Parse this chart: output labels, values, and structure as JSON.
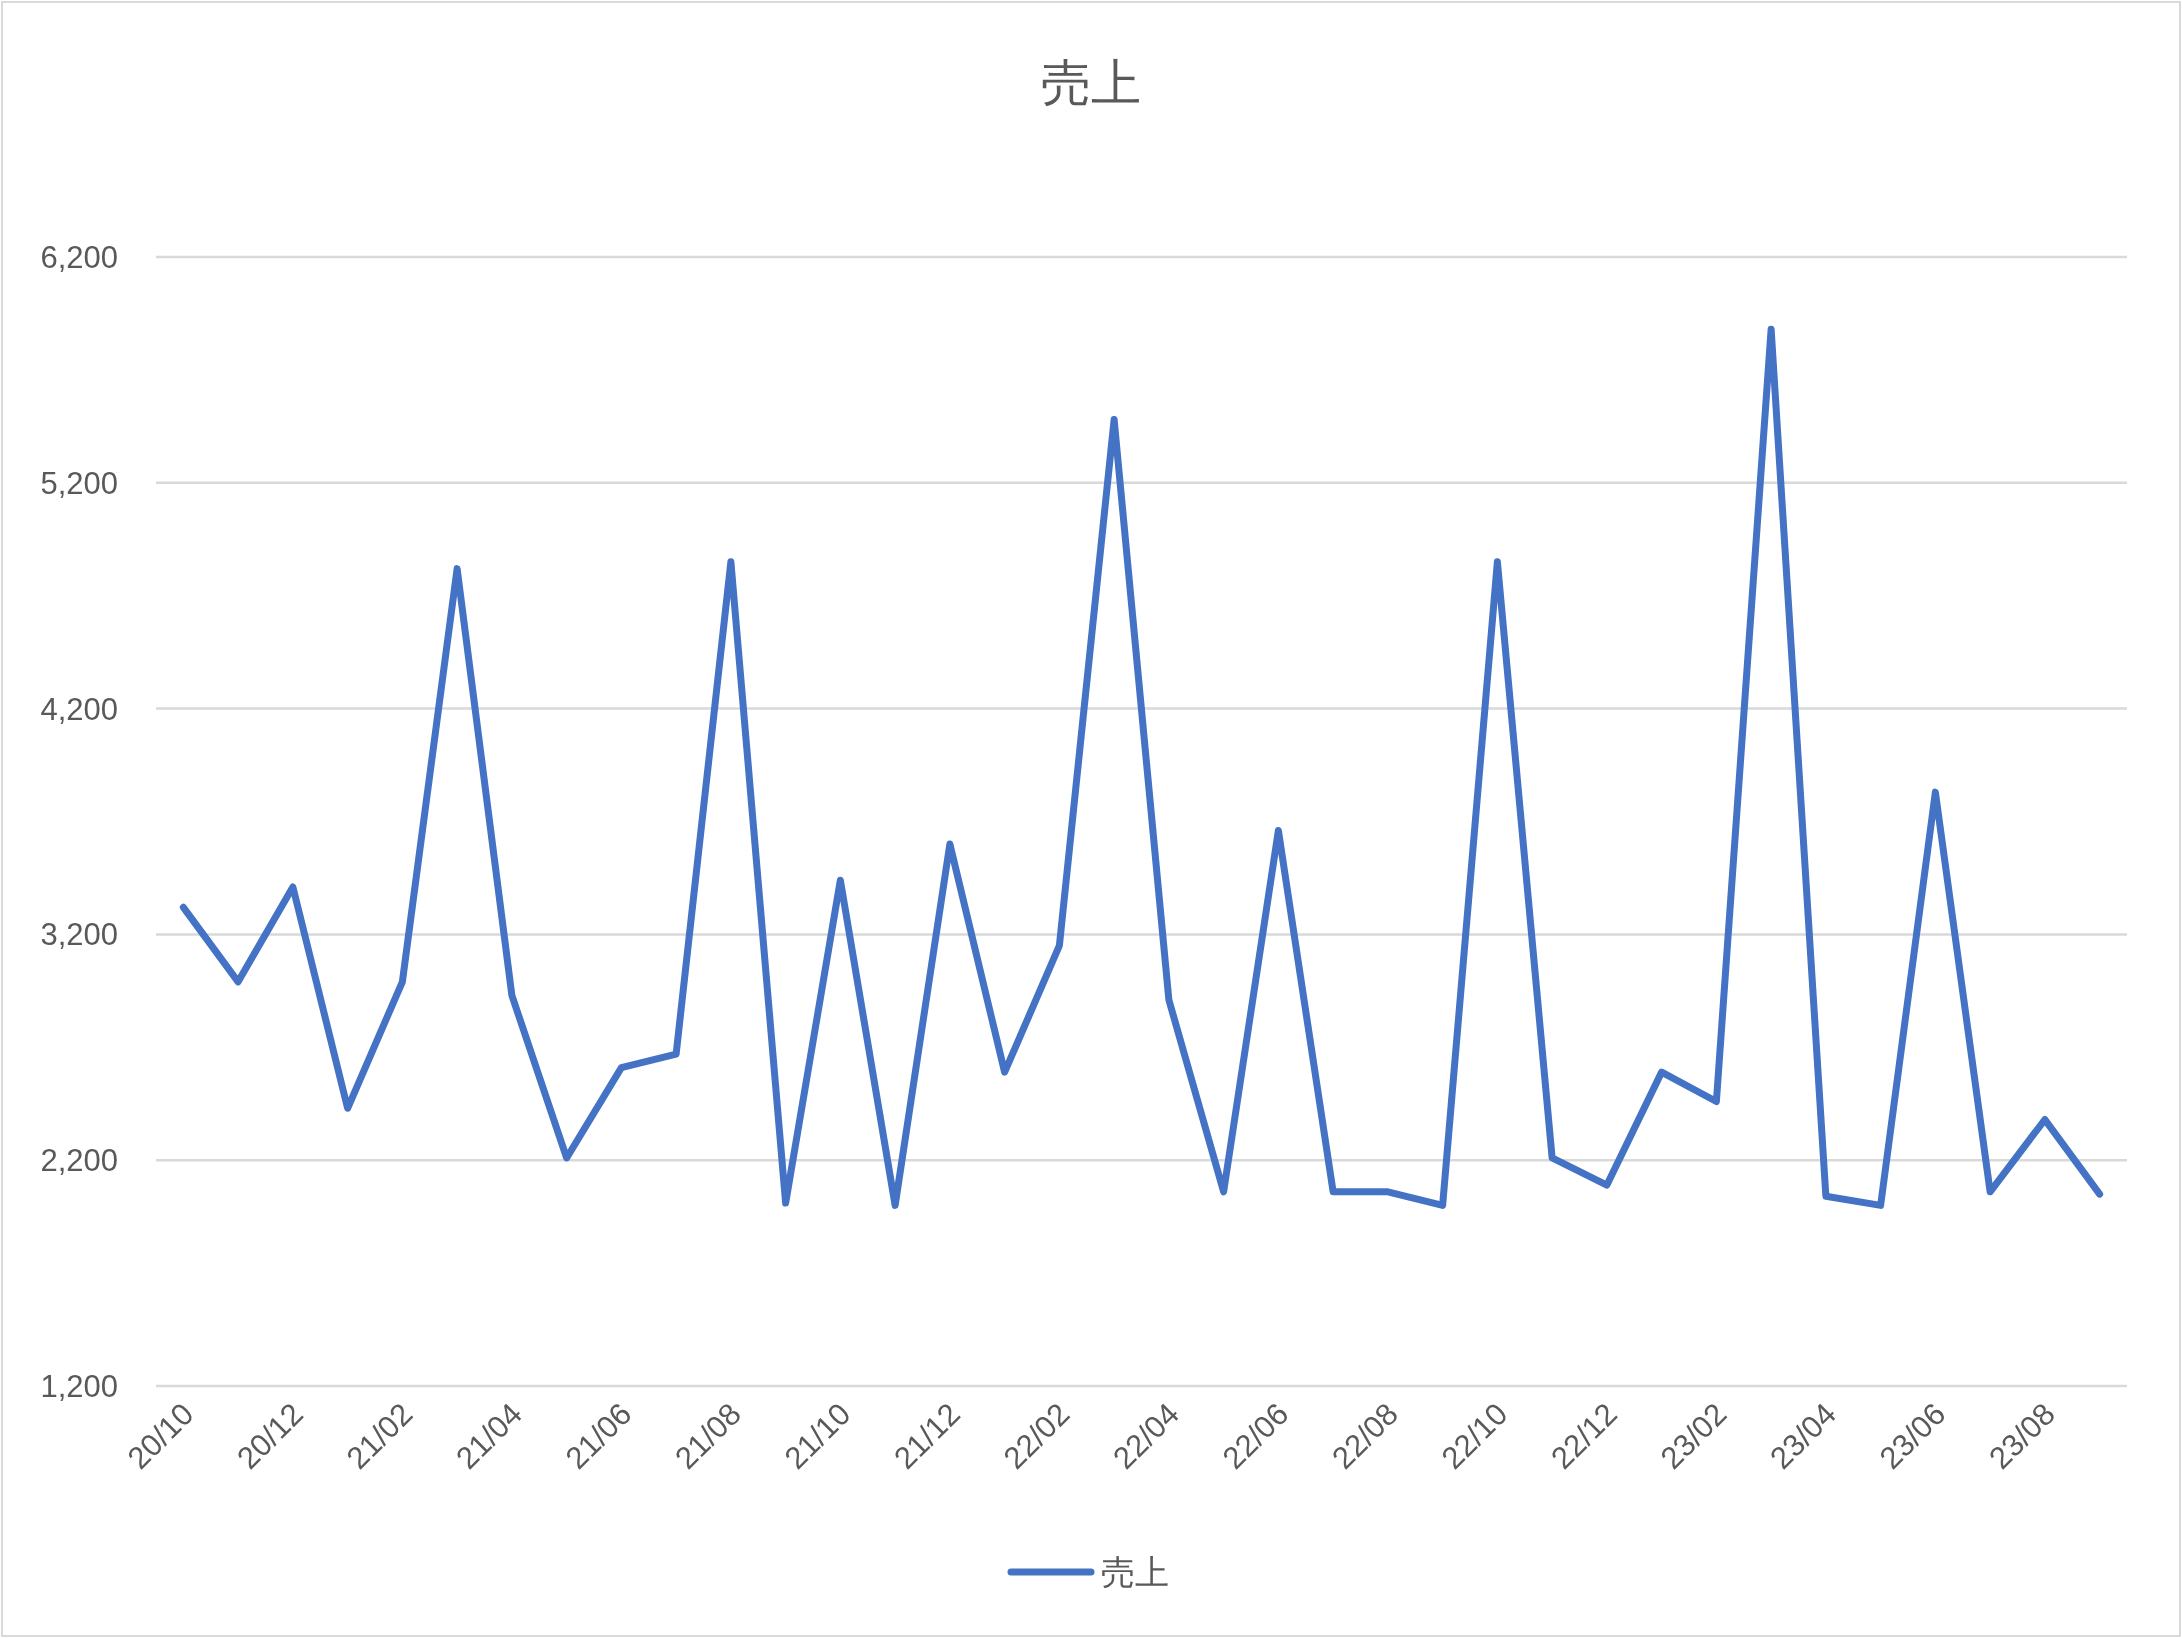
{
  "chart_data": {
    "type": "line",
    "title": "売上",
    "categories": [
      "20/10",
      null,
      "20/12",
      null,
      "21/02",
      null,
      "21/04",
      null,
      "21/06",
      null,
      "21/08",
      null,
      "21/10",
      null,
      "21/12",
      null,
      "22/02",
      null,
      "22/04",
      null,
      "22/06",
      null,
      "22/08",
      null,
      "22/10",
      null,
      "22/12",
      null,
      "23/02",
      null,
      "23/04",
      null,
      "23/06",
      null,
      "23/08",
      null
    ],
    "series": [
      {
        "name": "売上",
        "color": "#4472c4",
        "values": [
          3320,
          2990,
          3410,
          2430,
          2990,
          4820,
          2930,
          2210,
          2610,
          2670,
          4850,
          2010,
          3440,
          2000,
          3600,
          2590,
          3150,
          5480,
          2910,
          2060,
          3660,
          2060,
          2060,
          2000,
          4850,
          2210,
          2090,
          2590,
          2460,
          5880,
          2040,
          2000,
          3830,
          2060,
          2380,
          2050
        ]
      }
    ],
    "ylim": [
      1200,
      6200
    ],
    "yticks": [
      {
        "value": 1200,
        "label": "1,200"
      },
      {
        "value": 2200,
        "label": "2,200"
      },
      {
        "value": 3200,
        "label": "3,200"
      },
      {
        "value": 4200,
        "label": "4,200"
      },
      {
        "value": 5200,
        "label": "5,200"
      },
      {
        "value": 6200,
        "label": "6,200"
      }
    ],
    "grid": "y",
    "legend": "bottom"
  }
}
